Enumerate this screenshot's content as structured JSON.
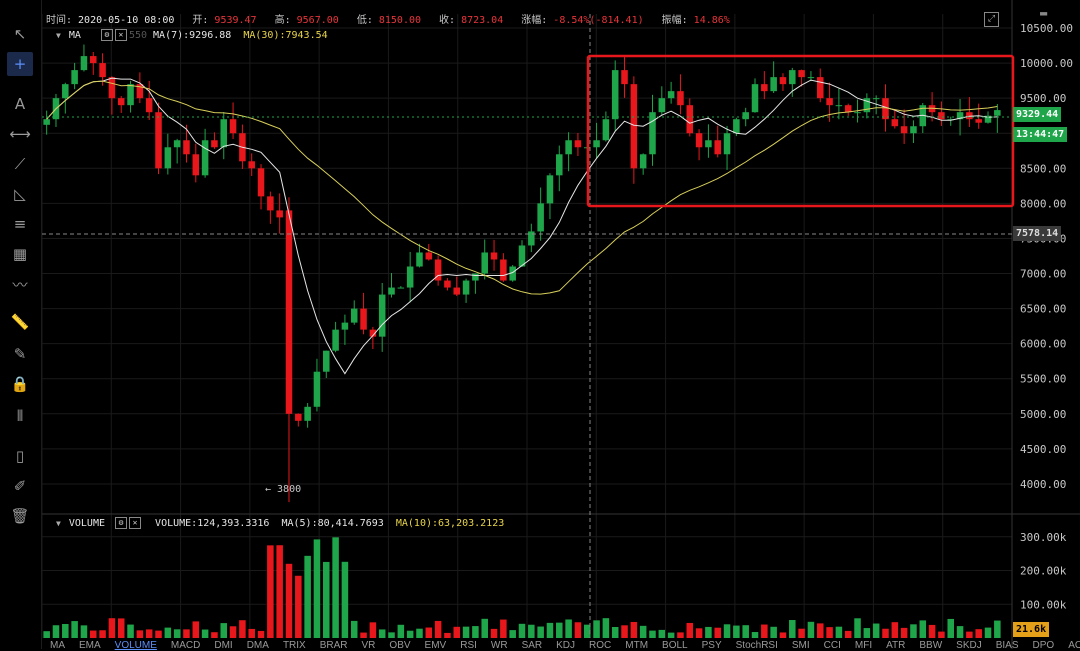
{
  "info_bar": {
    "time_label": "时间:",
    "time_value": "2020-05-10 08:00",
    "open_label": "开:",
    "open_value": "9539.47",
    "high_label": "高:",
    "high_value": "9567.00",
    "low_label": "低:",
    "low_value": "8150.00",
    "close_label": "收:",
    "close_value": "8723.04",
    "change_label": "涨幅:",
    "change_value": "-8.54%(-814.41)",
    "amplitude_label": "振幅:",
    "amplitude_value": "14.86%"
  },
  "main_legend": {
    "indicator": "MA",
    "hidden_param": "550",
    "ma7": "MA(7):9296.88",
    "ma30": "MA(30):7943.54"
  },
  "volume_legend": {
    "indicator": "VOLUME",
    "volume": "VOLUME:124,393.3316",
    "ma5": "MA(5):80,414.7693",
    "ma10": "MA(10):63,203.2123"
  },
  "price_axis": [
    "10500.00",
    "10000.00",
    "9500.00",
    "9000.00",
    "8500.00",
    "8000.00",
    "7500.00",
    "7000.00",
    "6500.00",
    "6000.00",
    "5500.00",
    "5000.00",
    "4500.00",
    "4000.00"
  ],
  "volume_axis": [
    "300.00k",
    "200.00k",
    "100.00k"
  ],
  "current_price_badge": "9329.44",
  "countdown_badge": "13:44:47",
  "crosshair_price_badge": "7578.14",
  "volume_badge": "21.6k",
  "low_marker": "3800",
  "bottom_tabs": [
    "MA",
    "EMA",
    "VOLUME",
    "MACD",
    "DMI",
    "DMA",
    "TRIX",
    "BRAR",
    "VR",
    "OBV",
    "EMV",
    "RSI",
    "WR",
    "SAR",
    "KDJ",
    "ROC",
    "MTM",
    "BOLL",
    "PSY",
    "StochRSI",
    "SMI",
    "CCI",
    "MFI",
    "ATR",
    "BBW",
    "SKDJ",
    "BIAS",
    "DPO",
    "AO"
  ],
  "active_tab": "VOLUME",
  "colors": {
    "up": "#1fa64a",
    "down": "#e8171c",
    "ma7": "#e6e6e6",
    "ma30": "#d8cf5a",
    "highlight_box": "#e8171c",
    "accent": "#5b8ff9"
  },
  "toolbar_icons": [
    "arrow-cursor-icon",
    "crosshair-icon",
    "text-icon",
    "horizontal-line-icon",
    "trend-line-icon",
    "triangle-icon",
    "parallel-channel-icon",
    "fib-grid-icon",
    "wave-pattern-icon",
    "ruler-icon",
    "brush-icon",
    "lock-icon",
    "measure-icon",
    "bookmark-icon",
    "edit-icon",
    "trash-icon"
  ],
  "chart_data": {
    "type": "candlestick",
    "x_hover": "2020-05-10 08:00",
    "price_range": [
      3600,
      10700
    ],
    "volume_range": [
      0,
      320000
    ],
    "price_min_marker": 3800,
    "highlight": "price consolidation region 8000-10000",
    "closes": [
      9200,
      9500,
      9700,
      9900,
      10100,
      10000,
      9800,
      9500,
      9400,
      9700,
      9500,
      9300,
      8500,
      8800,
      8900,
      8700,
      8400,
      8900,
      8800,
      9200,
      9000,
      8600,
      8500,
      8100,
      7900,
      7800,
      5000,
      4900,
      5100,
      5600,
      5900,
      6200,
      6300,
      6500,
      6200,
      6100,
      6700,
      6800,
      6800,
      7100,
      7300,
      7200,
      6900,
      6800,
      6700,
      6900,
      7000,
      7300,
      7200,
      6900,
      7100,
      7400,
      7600,
      8000,
      8400,
      8700,
      8900,
      8800,
      8800,
      8900,
      9200,
      9900,
      9700,
      8500,
      8700,
      9300,
      9500,
      9600,
      9400,
      9000,
      8800,
      8900,
      8700,
      9000,
      9200,
      9300,
      9700,
      9600,
      9800,
      9700,
      9900,
      9800,
      9800,
      9500,
      9400,
      9400,
      9300,
      9300,
      9500,
      9500,
      9200,
      9100,
      9000,
      9100,
      9400,
      9300,
      9200,
      9200,
      9300,
      9200,
      9150,
      9250,
      9330
    ],
    "ma7_label": "MA(7)",
    "ma30_label": "MA(30)"
  }
}
